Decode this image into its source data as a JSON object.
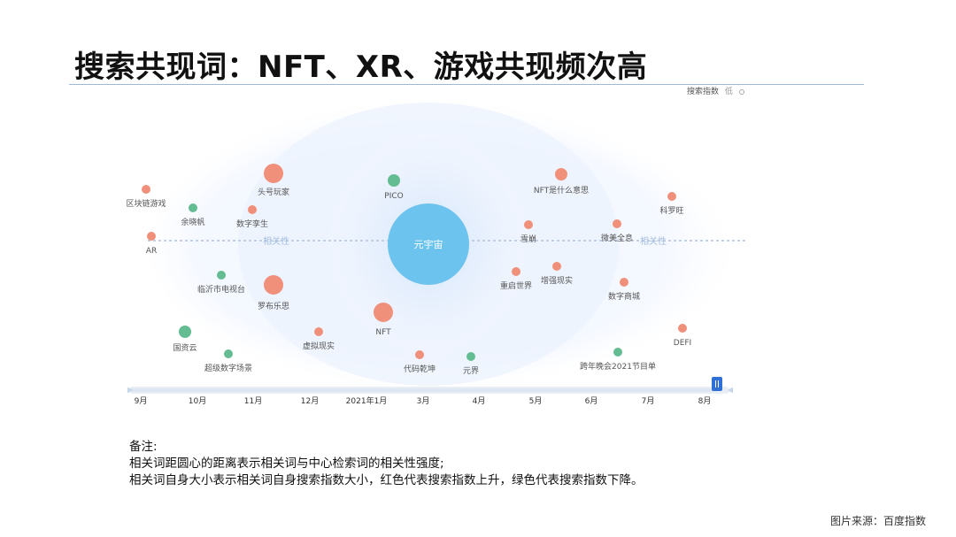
{
  "page": {
    "title": "搜索共现词：NFT、XR、游戏共现频次高",
    "source": "图片来源：百度指数"
  },
  "legend": {
    "label": "搜索指数",
    "low": "低"
  },
  "notes": {
    "heading": "备注:",
    "line1": "相关词距圆心的距离表示相关词与中心检索词的相关性强度;",
    "line2": "相关词自身大小表示相关词自身搜索指数大小，红色代表搜索指数上升，绿色代表搜索指数下降。"
  },
  "colors": {
    "rising": "#ef8a74",
    "falling": "#5cb88c",
    "center": "#6cc4ee",
    "ring": "#dbe9fb",
    "timeline": "#2f6fd6"
  },
  "chart_data": {
    "type": "bubble-relevance",
    "center": {
      "label": "元宇宙"
    },
    "axis_label": "相关性",
    "nodes": [
      {
        "label": "区块链游戏",
        "trend": "up",
        "size": "small"
      },
      {
        "label": "余晓帆",
        "trend": "down",
        "size": "small"
      },
      {
        "label": "头号玩家",
        "trend": "up",
        "size": "large"
      },
      {
        "label": "数字孪生",
        "trend": "up",
        "size": "small"
      },
      {
        "label": "AR",
        "trend": "up",
        "size": "small"
      },
      {
        "label": "临沂市电视台",
        "trend": "down",
        "size": "small"
      },
      {
        "label": "罗布乐思",
        "trend": "up",
        "size": "large"
      },
      {
        "label": "国资云",
        "trend": "down",
        "size": "medium"
      },
      {
        "label": "超级数字场景",
        "trend": "down",
        "size": "small"
      },
      {
        "label": "虚拟现实",
        "trend": "up",
        "size": "small"
      },
      {
        "label": "PICO",
        "trend": "down",
        "size": "medium"
      },
      {
        "label": "NFT",
        "trend": "up",
        "size": "large"
      },
      {
        "label": "代码乾坤",
        "trend": "up",
        "size": "small"
      },
      {
        "label": "元界",
        "trend": "down",
        "size": "small"
      },
      {
        "label": "NFT是什么意思",
        "trend": "up",
        "size": "medium"
      },
      {
        "label": "雪崩",
        "trend": "up",
        "size": "small"
      },
      {
        "label": "重启世界",
        "trend": "up",
        "size": "small"
      },
      {
        "label": "增强现实",
        "trend": "up",
        "size": "small"
      },
      {
        "label": "微美全息",
        "trend": "up",
        "size": "small"
      },
      {
        "label": "数字商城",
        "trend": "up",
        "size": "small"
      },
      {
        "label": "科罗旺",
        "trend": "up",
        "size": "small"
      },
      {
        "label": "跨年晚会2021节目单",
        "trend": "down",
        "size": "small"
      },
      {
        "label": "DEFI",
        "trend": "up",
        "size": "small"
      }
    ],
    "timeline": {
      "ticks": [
        "9月",
        "10月",
        "11月",
        "12月",
        "2021年1月",
        "3月",
        "4月",
        "5月",
        "6月",
        "7月",
        "8月"
      ],
      "selected": "8月"
    }
  }
}
